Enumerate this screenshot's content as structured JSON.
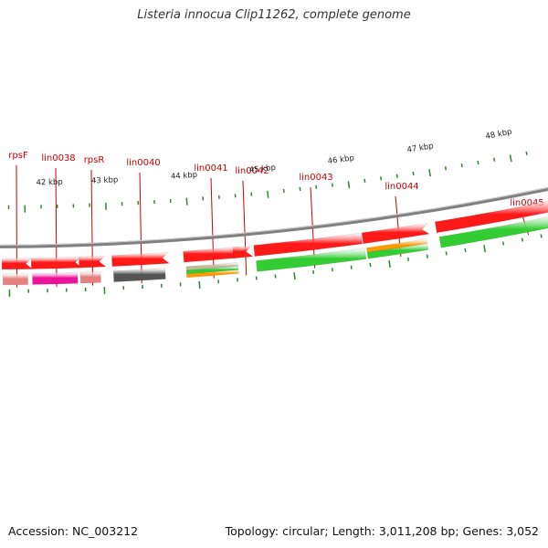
{
  "title": "Listeria innocua Clip11262, complete genome",
  "accession": "Accession: NC_003212",
  "summary": "Topology: circular; Length: 3,011,208 bp; Genes: 3,052",
  "colors": {
    "gene_label": "#cc0000",
    "tick": "#2a8a2a",
    "backbone": "#808080",
    "cds_red": "#ff1a1a",
    "green": "#33cc33",
    "orange": "#ff9900",
    "pink": "#e88080",
    "magenta": "#ee1199",
    "gray": "#555555",
    "tan": "#c8b89a"
  },
  "scale_labels": [
    "42 kbp",
    "43 kbp",
    "44 kbp",
    "45 kbp",
    "46 kbp",
    "47 kbp",
    "48 kbp"
  ],
  "genes": [
    {
      "label": "rpsF"
    },
    {
      "label": "lin0038"
    },
    {
      "label": "rpsR"
    },
    {
      "label": "lin0040"
    },
    {
      "label": "lin0041"
    },
    {
      "label": "lin0042"
    },
    {
      "label": "lin0043"
    },
    {
      "label": "lin0044"
    },
    {
      "label": "lin0045"
    }
  ]
}
